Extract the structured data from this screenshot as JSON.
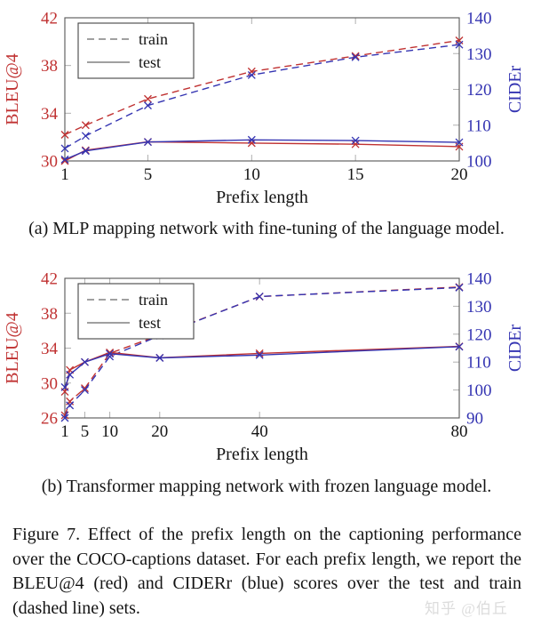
{
  "captions": {
    "a": "(a) MLP mapping network with fine-tuning of the language model.",
    "b": "(b) Transformer mapping network with frozen language model.",
    "figure": "Figure 7. Effect of the prefix length on the captioning performance over the COCO-captions dataset. For each prefix length, we report the BLEU@4 (red) and CIDERr (blue) scores over the test and train (dashed line) sets."
  },
  "watermark": "知乎 @伯丘",
  "legend": {
    "position": "top-left",
    "entries": [
      {
        "label": "train",
        "style": "dashed"
      },
      {
        "label": "test",
        "style": "solid"
      }
    ]
  },
  "colors": {
    "bleu": "#c03232",
    "cider": "#3434b2",
    "axis_text": "#141414",
    "caption_text": "#141414",
    "frame": "#555555",
    "tick": "#b0b0b0",
    "legend_line": "#808080",
    "watermark": "#dcdcdc"
  },
  "chart_data": [
    {
      "id": "a",
      "type": "line",
      "title": "MLP mapping network with fine-tuning of the language model",
      "xlabel": "Prefix length",
      "ylabel_left": "BLEU@4",
      "ylabel_right": "CIDEr",
      "x": [
        1,
        2,
        5,
        10,
        15,
        20
      ],
      "xlim": [
        1,
        20
      ],
      "xticks": [
        1,
        5,
        10,
        15,
        20
      ],
      "ylim_left": [
        30,
        42
      ],
      "yticks_left": [
        30,
        34,
        38,
        42
      ],
      "ylim_right": [
        100,
        140
      ],
      "yticks_right": [
        100,
        110,
        120,
        130,
        140
      ],
      "grid": false,
      "layout": {
        "l": 73,
        "r": 517,
        "t": 20,
        "b": 181
      },
      "series": [
        {
          "name": "train BLEU@4",
          "axis": "left",
          "style": "dashed",
          "color": "bleu",
          "values": [
            32.2,
            33.0,
            35.2,
            37.5,
            38.8,
            40.1
          ]
        },
        {
          "name": "train CIDEr",
          "axis": "right",
          "style": "dashed",
          "color": "cider",
          "values": [
            103.5,
            107.0,
            115.5,
            124.0,
            129.0,
            132.5
          ]
        },
        {
          "name": "test BLEU@4",
          "axis": "left",
          "style": "solid",
          "color": "bleu",
          "values": [
            30.0,
            30.9,
            31.6,
            31.5,
            31.4,
            31.2
          ]
        },
        {
          "name": "test CIDEr",
          "axis": "right",
          "style": "solid",
          "color": "cider",
          "values": [
            100.4,
            102.8,
            105.3,
            105.9,
            105.7,
            105.2
          ]
        }
      ]
    },
    {
      "id": "b",
      "type": "line",
      "title": "Transformer mapping network with frozen language model",
      "xlabel": "Prefix length",
      "ylabel_left": "BLEU@4",
      "ylabel_right": "CIDEr",
      "x": [
        1,
        2,
        5,
        10,
        20,
        40,
        80
      ],
      "xlim": [
        1,
        80
      ],
      "xticks": [
        1,
        5,
        10,
        20,
        40,
        80
      ],
      "ylim_left": [
        26,
        42
      ],
      "yticks_left": [
        26,
        30,
        34,
        38,
        42
      ],
      "ylim_right": [
        90,
        140
      ],
      "yticks_right": [
        90,
        100,
        110,
        120,
        130,
        140
      ],
      "grid": false,
      "layout": {
        "l": 73,
        "r": 517,
        "t": 28,
        "b": 185
      },
      "series": [
        {
          "name": "train BLEU@4",
          "axis": "left",
          "style": "dashed",
          "color": "bleu",
          "values": [
            26.3,
            27.9,
            29.4,
            33.4,
            35.5,
            39.9,
            41.0
          ]
        },
        {
          "name": "train CIDEr",
          "axis": "right",
          "style": "dashed",
          "color": "cider",
          "values": [
            90.0,
            94.5,
            100.0,
            112.0,
            119.5,
            133.5,
            136.7
          ]
        },
        {
          "name": "test BLEU@4",
          "axis": "left",
          "style": "solid",
          "color": "bleu",
          "values": [
            29.0,
            31.5,
            32.4,
            33.5,
            32.9,
            33.4,
            34.2
          ]
        },
        {
          "name": "test CIDEr",
          "axis": "right",
          "style": "solid",
          "color": "cider",
          "values": [
            101.0,
            105.5,
            110.0,
            113.0,
            111.5,
            112.5,
            115.5
          ]
        }
      ]
    }
  ]
}
